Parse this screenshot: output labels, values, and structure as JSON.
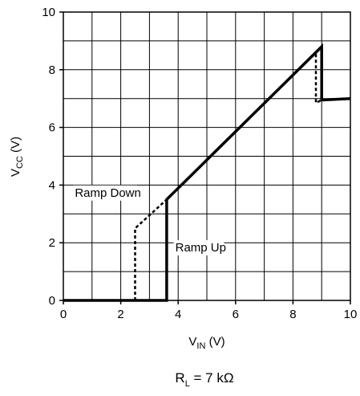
{
  "chart_data": {
    "type": "line",
    "xlabel": {
      "main": "V",
      "sub": "IN",
      "unit": " (V)"
    },
    "ylabel": {
      "main": "V",
      "sub": "CC",
      "unit": " (V)"
    },
    "xlim": [
      0,
      10
    ],
    "ylim": [
      0,
      10
    ],
    "x_ticks": [
      0,
      2,
      4,
      6,
      8,
      10
    ],
    "y_ticks": [
      0,
      2,
      4,
      6,
      8,
      10
    ],
    "grid": true,
    "grid_step": 1,
    "series": [
      {
        "name": "Ramp Up",
        "style": "solid",
        "points": [
          [
            0,
            0
          ],
          [
            3.6,
            0
          ],
          [
            3.6,
            3.5
          ],
          [
            9.0,
            8.8
          ],
          [
            9.0,
            6.95
          ],
          [
            10,
            7.0
          ]
        ]
      },
      {
        "name": "Ramp Down",
        "style": "dashed",
        "points": [
          [
            2.5,
            0
          ],
          [
            2.5,
            2.5
          ],
          [
            3.6,
            3.5
          ],
          [
            8.8,
            8.6
          ],
          [
            8.8,
            6.85
          ],
          [
            9.0,
            6.95
          ]
        ]
      }
    ],
    "annotations": [
      {
        "text": "Ramp Down",
        "x": 0.4,
        "y": 3.6
      },
      {
        "text": "Ramp Up",
        "x": 3.9,
        "y": 1.7
      }
    ],
    "caption": {
      "main": "R",
      "sub": "L",
      "rest": " = 7 kΩ"
    }
  }
}
